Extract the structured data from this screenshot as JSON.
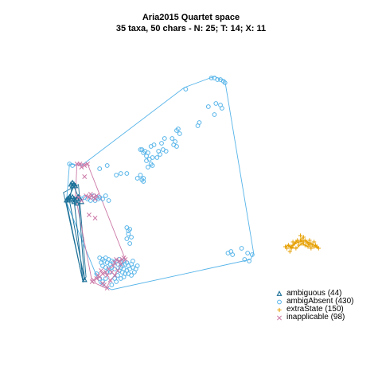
{
  "chart_data": {
    "type": "scatter",
    "title": "Aria2015 Quartet space",
    "subtitle": "35 taxa, 50 chars - N: 25; T: 14; X: 11",
    "xlabel": "",
    "ylabel": "",
    "axes_visible": false,
    "grid": false,
    "legend_position": "bottom-right",
    "series": [
      {
        "name": "ambiguous (44)",
        "count": 44,
        "marker": "triangle",
        "color": "#1a6f97",
        "hull": [
          [
            -0.62,
            0.04
          ],
          [
            -0.52,
            0.09
          ],
          [
            -0.47,
            -0.49
          ],
          [
            -0.49,
            -0.52
          ],
          [
            -0.6,
            -0.04
          ]
        ],
        "points": [
          [
            -0.57,
            0.09
          ],
          [
            -0.56,
            0.08
          ],
          [
            -0.55,
            0.09
          ],
          [
            -0.54,
            0.08
          ],
          [
            -0.56,
            0.1
          ],
          [
            -0.6,
            -0.01
          ],
          [
            -0.59,
            0.0
          ],
          [
            -0.58,
            -0.01
          ],
          [
            -0.57,
            0.0
          ],
          [
            -0.56,
            0.01
          ],
          [
            -0.55,
            0.0
          ],
          [
            -0.54,
            -0.01
          ],
          [
            -0.53,
            0.0
          ],
          [
            -0.52,
            0.01
          ],
          [
            -0.51,
            0.0
          ],
          [
            -0.58,
            0.01
          ],
          [
            -0.55,
            -0.02
          ],
          [
            -0.53,
            -0.03
          ],
          [
            -0.5,
            -0.02
          ],
          [
            -0.48,
            -0.51
          ]
        ]
      },
      {
        "name": "ambigAbsent (430)",
        "count": 430,
        "marker": "circle",
        "color": "#56b4e9",
        "hull": [
          [
            -0.58,
            0.22
          ],
          [
            -0.5,
            0.21
          ],
          [
            0.18,
            0.7
          ],
          [
            0.38,
            0.77
          ],
          [
            0.45,
            0.74
          ],
          [
            0.64,
            -0.34
          ],
          [
            0.62,
            -0.38
          ],
          [
            -0.3,
            -0.57
          ],
          [
            -0.38,
            -0.53
          ],
          [
            -0.6,
            -0.02
          ]
        ],
        "points": [
          [
            0.36,
            0.76
          ],
          [
            0.38,
            0.76
          ],
          [
            0.4,
            0.75
          ],
          [
            0.44,
            0.74
          ],
          [
            0.42,
            0.75
          ],
          [
            0.45,
            0.73
          ],
          [
            0.19,
            0.69
          ],
          [
            0.34,
            0.58
          ],
          [
            0.39,
            0.6
          ],
          [
            0.42,
            0.59
          ],
          [
            0.43,
            0.57
          ],
          [
            0.38,
            0.53
          ],
          [
            0.28,
            0.48
          ],
          [
            0.27,
            0.46
          ],
          [
            0.14,
            0.44
          ],
          [
            0.13,
            0.43
          ],
          [
            0.15,
            0.41
          ],
          [
            0.1,
            0.38
          ],
          [
            0.12,
            0.36
          ],
          [
            0.11,
            0.34
          ],
          [
            0.13,
            0.33
          ],
          [
            0.05,
            0.38
          ],
          [
            0.03,
            0.35
          ],
          [
            0.04,
            0.31
          ],
          [
            0.06,
            0.3
          ],
          [
            0.02,
            0.28
          ],
          [
            0.01,
            0.3
          ],
          [
            -0.02,
            0.34
          ],
          [
            -0.04,
            0.33
          ],
          [
            -0.06,
            0.29
          ],
          [
            -0.08,
            0.3
          ],
          [
            -0.1,
            0.31
          ],
          [
            -0.09,
            0.29
          ],
          [
            -0.11,
            0.31
          ],
          [
            -0.07,
            0.27
          ],
          [
            -0.05,
            0.25
          ],
          [
            -0.03,
            0.26
          ],
          [
            0.0,
            0.26
          ],
          [
            -0.04,
            0.22
          ],
          [
            -0.07,
            0.24
          ],
          [
            -0.06,
            0.2
          ],
          [
            -0.03,
            0.21
          ],
          [
            -0.11,
            0.15
          ],
          [
            -0.13,
            0.13
          ],
          [
            -0.2,
            0.16
          ],
          [
            -0.24,
            0.16
          ],
          [
            -0.27,
            0.15
          ],
          [
            -0.09,
            0.13
          ],
          [
            -0.1,
            0.12
          ],
          [
            -0.09,
            0.11
          ],
          [
            -0.33,
            0.21
          ],
          [
            -0.38,
            0.19
          ],
          [
            -0.58,
            0.22
          ],
          [
            -0.56,
            0.21
          ],
          [
            -0.42,
            0.02
          ],
          [
            -0.38,
            0.01
          ],
          [
            -0.36,
            0.0
          ],
          [
            -0.32,
            -0.01
          ],
          [
            -0.41,
            -0.01
          ],
          [
            -0.39,
            0.0
          ],
          [
            -0.4,
            0.01
          ],
          [
            -0.46,
            0.0
          ],
          [
            -0.44,
            -0.01
          ],
          [
            -0.48,
            0.01
          ],
          [
            -0.5,
            0.0
          ],
          [
            -0.34,
            0.02
          ],
          [
            -0.2,
            -0.18
          ],
          [
            -0.18,
            -0.19
          ],
          [
            -0.19,
            -0.2
          ],
          [
            -0.19,
            -0.22
          ],
          [
            -0.17,
            -0.24
          ],
          [
            -0.2,
            -0.25
          ],
          [
            -0.18,
            -0.28
          ],
          [
            0.47,
            -0.34
          ],
          [
            0.49,
            -0.33
          ],
          [
            0.5,
            -0.35
          ],
          [
            0.56,
            -0.31
          ],
          [
            0.6,
            -0.34
          ],
          [
            0.63,
            -0.35
          ],
          [
            0.58,
            -0.38
          ],
          [
            0.61,
            -0.39
          ],
          [
            -0.38,
            -0.37
          ],
          [
            -0.36,
            -0.38
          ],
          [
            -0.34,
            -0.37
          ],
          [
            -0.35,
            -0.39
          ],
          [
            -0.33,
            -0.4
          ],
          [
            -0.37,
            -0.4
          ],
          [
            -0.32,
            -0.38
          ],
          [
            -0.3,
            -0.39
          ],
          [
            -0.31,
            -0.41
          ],
          [
            -0.36,
            -0.42
          ],
          [
            -0.34,
            -0.43
          ],
          [
            -0.32,
            -0.44
          ],
          [
            -0.29,
            -0.4
          ],
          [
            -0.3,
            -0.43
          ],
          [
            -0.28,
            -0.44
          ],
          [
            -0.33,
            -0.46
          ],
          [
            -0.31,
            -0.46
          ],
          [
            -0.38,
            -0.5
          ],
          [
            -0.36,
            -0.52
          ],
          [
            -0.34,
            -0.5
          ],
          [
            -0.4,
            -0.47
          ],
          [
            -0.27,
            -0.39
          ],
          [
            -0.25,
            -0.38
          ],
          [
            -0.24,
            -0.4
          ],
          [
            -0.26,
            -0.41
          ],
          [
            -0.23,
            -0.42
          ],
          [
            -0.21,
            -0.41
          ],
          [
            -0.22,
            -0.39
          ],
          [
            -0.2,
            -0.4
          ],
          [
            -0.19,
            -0.42
          ],
          [
            -0.24,
            -0.43
          ],
          [
            -0.22,
            -0.44
          ],
          [
            -0.2,
            -0.45
          ],
          [
            -0.18,
            -0.44
          ],
          [
            -0.17,
            -0.41
          ],
          [
            -0.16,
            -0.43
          ],
          [
            -0.21,
            -0.47
          ],
          [
            -0.19,
            -0.47
          ],
          [
            -0.17,
            -0.48
          ],
          [
            -0.15,
            -0.46
          ],
          [
            -0.14,
            -0.44
          ],
          [
            -0.25,
            -0.45
          ],
          [
            -0.23,
            -0.46
          ],
          [
            -0.26,
            -0.48
          ],
          [
            -0.28,
            -0.5
          ],
          [
            -0.3,
            -0.54
          ],
          [
            -0.24,
            -0.5
          ],
          [
            -0.27,
            -0.52
          ],
          [
            -0.22,
            -0.49
          ],
          [
            -0.16,
            -0.39
          ],
          [
            -0.13,
            -0.42
          ]
        ]
      },
      {
        "name": "extraState (150)",
        "count": 150,
        "marker": "plus",
        "color": "#e69f00",
        "hull": [],
        "points": [
          [
            0.85,
            -0.3
          ],
          [
            0.86,
            -0.31
          ],
          [
            0.87,
            -0.29
          ],
          [
            0.88,
            -0.3
          ],
          [
            0.89,
            -0.31
          ],
          [
            0.9,
            -0.29
          ],
          [
            0.91,
            -0.28
          ],
          [
            0.92,
            -0.27
          ],
          [
            0.93,
            -0.26
          ],
          [
            0.94,
            -0.27
          ],
          [
            0.95,
            -0.26
          ],
          [
            0.96,
            -0.25
          ],
          [
            0.97,
            -0.27
          ],
          [
            0.98,
            -0.26
          ],
          [
            0.99,
            -0.27
          ],
          [
            1.0,
            -0.28
          ],
          [
            1.01,
            -0.29
          ],
          [
            1.02,
            -0.28
          ],
          [
            1.03,
            -0.29
          ],
          [
            1.04,
            -0.3
          ],
          [
            1.05,
            -0.29
          ],
          [
            1.06,
            -0.3
          ],
          [
            1.07,
            -0.31
          ],
          [
            0.94,
            -0.29
          ],
          [
            0.96,
            -0.28
          ],
          [
            0.98,
            -0.29
          ],
          [
            1.0,
            -0.3
          ],
          [
            1.02,
            -0.31
          ],
          [
            0.92,
            -0.31
          ],
          [
            0.9,
            -0.27
          ],
          [
            0.95,
            -0.23
          ],
          [
            0.97,
            -0.24
          ],
          [
            1.01,
            -0.26
          ],
          [
            1.04,
            -0.27
          ],
          [
            0.88,
            -0.33
          ]
        ]
      },
      {
        "name": "inapplicable (98)",
        "count": 98,
        "marker": "cross",
        "color": "#cc79a7",
        "hull": [
          [
            -0.53,
            0.22
          ],
          [
            -0.46,
            0.22
          ],
          [
            -0.21,
            -0.38
          ],
          [
            -0.34,
            -0.56
          ],
          [
            -0.43,
            -0.52
          ],
          [
            -0.54,
            0.02
          ]
        ],
        "points": [
          [
            -0.53,
            0.22
          ],
          [
            -0.51,
            0.22
          ],
          [
            -0.48,
            0.21
          ],
          [
            -0.46,
            0.22
          ],
          [
            -0.5,
            0.2
          ],
          [
            -0.48,
            0.14
          ],
          [
            -0.47,
            0.02
          ],
          [
            -0.45,
            0.01
          ],
          [
            -0.43,
            0.02
          ],
          [
            -0.41,
            0.0
          ],
          [
            -0.44,
            0.03
          ],
          [
            -0.42,
            0.01
          ],
          [
            -0.4,
            0.02
          ],
          [
            -0.52,
            0.01
          ],
          [
            -0.5,
            -0.01
          ],
          [
            -0.45,
            -0.1
          ],
          [
            -0.41,
            -0.12
          ],
          [
            -0.37,
            -0.45
          ],
          [
            -0.36,
            -0.47
          ],
          [
            -0.34,
            -0.46
          ],
          [
            -0.33,
            -0.48
          ],
          [
            -0.32,
            -0.44
          ],
          [
            -0.3,
            -0.46
          ],
          [
            -0.29,
            -0.42
          ],
          [
            -0.28,
            -0.4
          ],
          [
            -0.27,
            -0.38
          ],
          [
            -0.25,
            -0.39
          ],
          [
            -0.24,
            -0.41
          ],
          [
            -0.23,
            -0.38
          ],
          [
            -0.22,
            -0.37
          ],
          [
            -0.21,
            -0.38
          ],
          [
            -0.39,
            -0.48
          ],
          [
            -0.4,
            -0.5
          ],
          [
            -0.42,
            -0.51
          ],
          [
            -0.43,
            -0.52
          ],
          [
            -0.38,
            -0.49
          ],
          [
            -0.36,
            -0.53
          ],
          [
            -0.35,
            -0.54
          ],
          [
            -0.33,
            -0.56
          ],
          [
            -0.31,
            -0.51
          ],
          [
            -0.28,
            -0.48
          ],
          [
            -0.26,
            -0.45
          ]
        ]
      }
    ],
    "paths": [
      {
        "series": "ambiguous (44)",
        "color": "#1a6f97",
        "points": [
          [
            -0.56,
            0.09
          ],
          [
            -0.58,
            -0.01
          ],
          [
            -0.48,
            -0.51
          ],
          [
            -0.52,
            0.01
          ],
          [
            -0.55,
            0.08
          ],
          [
            -0.6,
            -0.02
          ],
          [
            -0.49,
            -0.52
          ],
          [
            -0.55,
            0.0
          ]
        ]
      },
      {
        "series": "extraState (150)",
        "color": "#e69f00",
        "points": [
          [
            0.85,
            -0.3
          ],
          [
            0.87,
            -0.29
          ],
          [
            0.89,
            -0.31
          ],
          [
            0.91,
            -0.28
          ],
          [
            0.93,
            -0.26
          ],
          [
            0.95,
            -0.26
          ],
          [
            0.97,
            -0.27
          ],
          [
            0.99,
            -0.27
          ],
          [
            1.01,
            -0.29
          ],
          [
            1.03,
            -0.29
          ],
          [
            1.05,
            -0.29
          ],
          [
            1.07,
            -0.31
          ],
          [
            1.04,
            -0.3
          ],
          [
            1.0,
            -0.3
          ],
          [
            0.96,
            -0.28
          ],
          [
            0.92,
            -0.31
          ],
          [
            0.88,
            -0.3
          ],
          [
            0.9,
            -0.29
          ],
          [
            0.94,
            -0.27
          ],
          [
            0.98,
            -0.26
          ],
          [
            1.02,
            -0.28
          ],
          [
            1.06,
            -0.3
          ]
        ]
      }
    ],
    "xlim": [
      -0.75,
      1.2
    ],
    "ylim": [
      -0.85,
      0.95
    ]
  }
}
